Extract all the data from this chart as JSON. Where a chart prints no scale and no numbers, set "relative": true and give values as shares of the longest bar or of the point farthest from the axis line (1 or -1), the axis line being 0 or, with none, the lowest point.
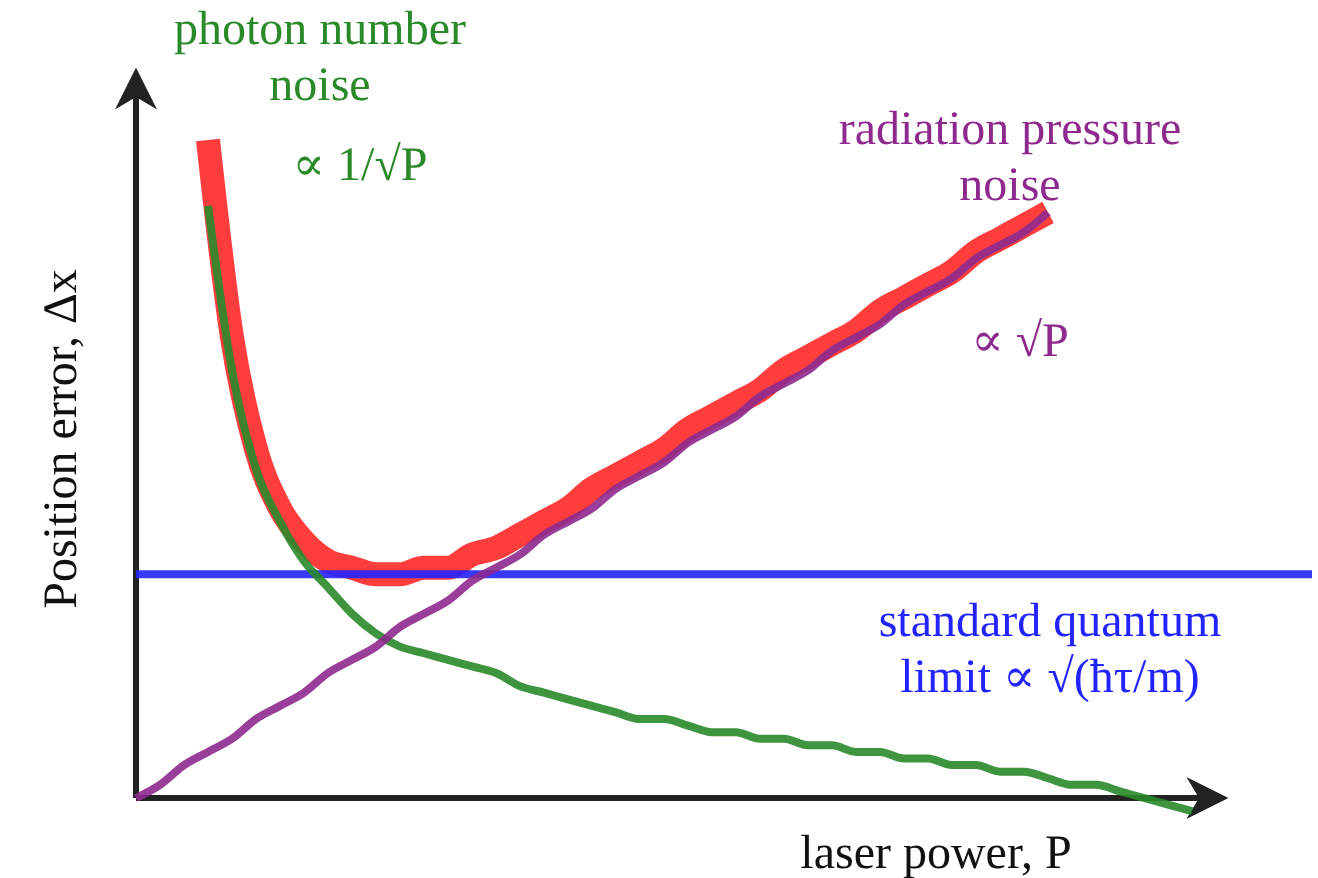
{
  "chart_data": {
    "type": "line",
    "relative": true,
    "xlabel": "laser power, P",
    "ylabel": "Position error, Δx",
    "legend": false,
    "categories": [
      null,
      null,
      null,
      null,
      null,
      null,
      null,
      null,
      null,
      null,
      null,
      null,
      null,
      null,
      null,
      null,
      null,
      null,
      null,
      null,
      null,
      null,
      null,
      null,
      null,
      null,
      null,
      null,
      null,
      null,
      null,
      null,
      null,
      null,
      null,
      null,
      null,
      null,
      null,
      null,
      null,
      null,
      null,
      null,
      null,
      null,
      null,
      null,
      null,
      null
    ],
    "series": [
      {
        "color": "#ff3333",
        "values": [
          null,
          null,
          null,
          1,
          0.7,
          0.53,
          0.44,
          0.39,
          0.36,
          0.35,
          0.34,
          0.34,
          0.35,
          0.35,
          0.37,
          0.38,
          0.4,
          0.42,
          0.44,
          0.47,
          0.49,
          0.51,
          0.53,
          0.56,
          0.58,
          0.6,
          0.62,
          0.65,
          0.67,
          0.69,
          0.71,
          0.74,
          0.76,
          0.78,
          0.8,
          0.83,
          0.85,
          0.87,
          0.89,
          null,
          null,
          null,
          null,
          null,
          null,
          null,
          null,
          null,
          null,
          null
        ]
      },
      {
        "name": "standard quantum limit ∝ √(ħτ/m)",
        "color": "#2323ff",
        "values": [
          0.34,
          0.34,
          0.34,
          0.34,
          0.34,
          0.34,
          0.34,
          0.34,
          0.34,
          0.34,
          0.34,
          0.34,
          0.34,
          0.34,
          0.34,
          0.34,
          0.34,
          0.34,
          0.34,
          0.34,
          0.34,
          0.34,
          0.34,
          0.34,
          0.34,
          0.34,
          0.34,
          0.34,
          0.34,
          0.34,
          0.34,
          0.34,
          0.34,
          0.34,
          0.34,
          0.34,
          0.34,
          0.34,
          0.34,
          0.34,
          0.34,
          0.34,
          0.34,
          0.34,
          0.34,
          0.34,
          0.34,
          0.34,
          0.34,
          0.34
        ]
      },
      {
        "name": "photon number noise",
        "color": "#2a8a2a",
        "values": [
          null,
          null,
          null,
          0.9,
          0.65,
          0.5,
          0.42,
          0.36,
          0.32,
          0.28,
          0.25,
          0.23,
          0.22,
          0.21,
          0.2,
          0.19,
          0.17,
          0.16,
          0.15,
          0.14,
          0.13,
          0.12,
          0.12,
          0.11,
          0.1,
          0.1,
          0.09,
          0.09,
          0.08,
          0.08,
          0.07,
          0.07,
          0.06,
          0.06,
          0.05,
          0.05,
          0.04,
          0.04,
          0.03,
          0.02,
          0.02,
          0.01,
          0.0,
          -0.01,
          -0.02,
          null,
          null,
          null,
          null,
          null
        ]
      },
      {
        "name": "radiation pressure noise",
        "color": "#8e2a8e",
        "values": [
          0,
          0.02,
          0.05,
          0.07,
          0.09,
          0.12,
          0.14,
          0.16,
          0.19,
          0.21,
          0.23,
          0.26,
          0.28,
          0.3,
          0.33,
          0.35,
          0.37,
          0.4,
          0.42,
          0.44,
          0.47,
          0.49,
          0.51,
          0.54,
          0.56,
          0.58,
          0.61,
          0.63,
          0.65,
          0.68,
          0.7,
          0.72,
          0.75,
          0.77,
          0.79,
          0.82,
          0.84,
          0.86,
          0.89,
          null,
          null,
          null,
          null,
          null,
          null,
          null,
          null,
          null,
          null,
          null
        ]
      }
    ],
    "annotations": [
      "∝ 1/√P",
      "∝ √P"
    ]
  }
}
